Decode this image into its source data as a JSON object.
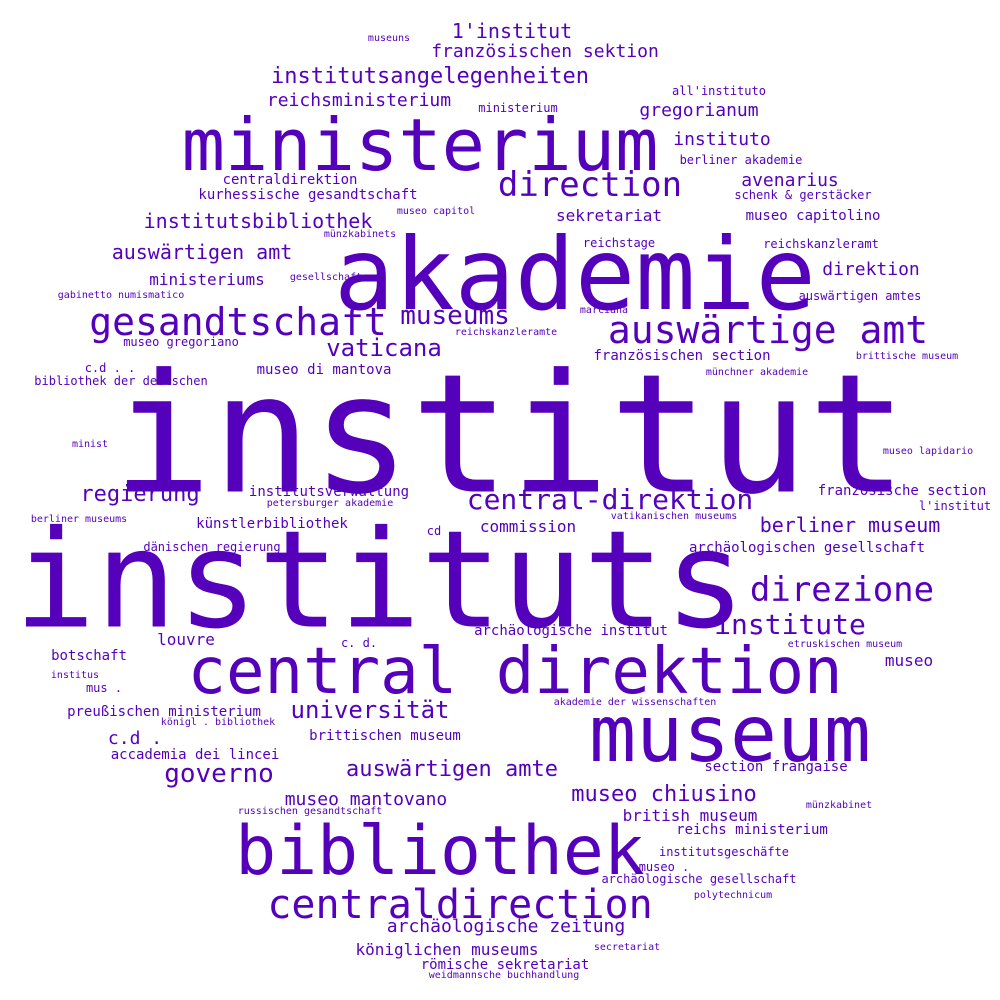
{
  "style": {
    "word_color": "#5500bb",
    "background": "#ffffff"
  },
  "words": [
    "institut",
    "instituts",
    "akademie",
    "ministerium",
    "museum",
    "central direktion",
    "bibliothek",
    "centraldirection",
    "auswärtige amt",
    "gesandtschaft",
    "direction",
    "direzione",
    "central-direktion",
    "museums",
    "institute",
    "universität",
    "auswärtigen amte",
    "governo",
    "vaticana",
    "institutsangelegenheiten",
    "regierung",
    "museo chiusino",
    "berliner museum",
    "auswärtigen amt",
    "archäologische zeitung",
    "institutsbibliothek",
    "museo mantovano",
    "1'institut",
    "c.d .",
    "direktion",
    "französischen sektion",
    "reichsministerium",
    "avenarius",
    "sekretariat",
    "instituto",
    "gregorianum",
    "british museum",
    "königlichen museums",
    "römische sekretariat",
    "brittischen museum",
    "section frangaise",
    "commission",
    "ministeriums",
    "museo capitolino",
    "louvre",
    "reichs ministerium",
    "museo",
    "künstlerbibliothek",
    "institutsverwaltung",
    "museo di mantova",
    "französische section",
    "französischen section",
    "archäologischen gesellschaft",
    "archäologische institut",
    "accademia dei lincei",
    "centraldirektion",
    "kurhessische gesandtschaft",
    "reichskanzleramt",
    "preußischen ministerium",
    "botschaft",
    "auswärtigen amtes",
    "institutsgeschäfte",
    "bibliothek der deutschen",
    "berliner akademie",
    "dänischen regierung",
    "museo gregoriano",
    "l'institut",
    "museo .",
    "schenk & gerstäcker",
    "all'instituto",
    "ministerium",
    "c. d.",
    "reichstage",
    "museo lapidario",
    "cd",
    "archäologische gesellschaft",
    "etruskischen museum",
    "brittische museum",
    "münchner akademie",
    "vatikanischen museums",
    "polytechnicum",
    "c.d . .",
    "mus .",
    "akademie der wissenschaften",
    "museo capitol",
    "münzkabinets",
    "gesellschaft",
    "gabinetto numismatico",
    "marciana",
    "reichskanzleramte",
    "petersburger akademie",
    "berliner museums",
    "königl . bibliothek",
    "russischen gesandtschaft",
    "münzkabinet",
    "secretariat",
    "weidmannsche buchhandlung",
    "institus",
    "minist",
    "museuns"
  ]
}
